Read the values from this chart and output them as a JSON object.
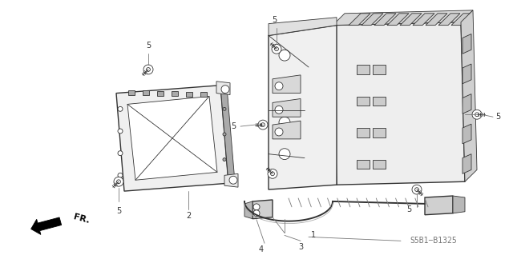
{
  "background_color": "#ffffff",
  "fig_width": 6.4,
  "fig_height": 3.19,
  "dpi": 100,
  "diagram_code": "S5B1−B1325",
  "fr_label": "FR.",
  "line_color": "#333333",
  "light_gray": "#aaaaaa",
  "med_gray": "#777777",
  "lw_thin": 0.6,
  "lw_med": 1.0,
  "lw_thick": 1.4,
  "label_fs": 7,
  "code_fs": 7
}
